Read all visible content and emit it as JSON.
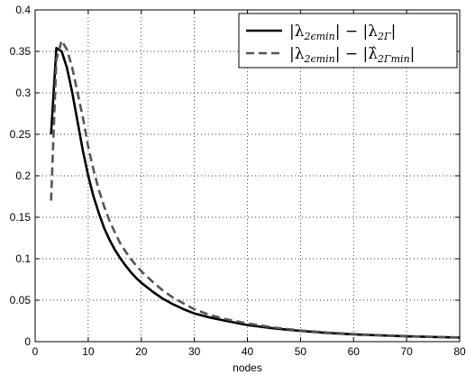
{
  "chart_data": {
    "type": "line",
    "title": "",
    "xlabel": "nodes",
    "ylabel": "",
    "xlim": [
      0,
      80
    ],
    "ylim": [
      0,
      0.4
    ],
    "xticks": [
      0,
      10,
      20,
      30,
      40,
      50,
      60,
      70,
      80
    ],
    "yticks": [
      0,
      0.05,
      0.1,
      0.15,
      0.2,
      0.25,
      0.3,
      0.35,
      0.4
    ],
    "xtick_labels": [
      "0",
      "10",
      "20",
      "30",
      "40",
      "50",
      "60",
      "70",
      "80"
    ],
    "ytick_labels": [
      "0",
      "0.05",
      "0.1",
      "0.15",
      "0.2",
      "0.25",
      "0.3",
      "0.35",
      "0.4"
    ],
    "grid": true,
    "legend_position": "top-right",
    "series": [
      {
        "name": "|λ2ϵmin| − |λ2Γ|",
        "style": "solid",
        "color": "#000000",
        "x": [
          3,
          4,
          5,
          6,
          7,
          8,
          9,
          10,
          11,
          12,
          13,
          14,
          15,
          16,
          17,
          18,
          19,
          20,
          22,
          24,
          26,
          28,
          30,
          33,
          36,
          40,
          45,
          50,
          55,
          60,
          65,
          70,
          75,
          80
        ],
        "y": [
          0.25,
          0.354,
          0.35,
          0.33,
          0.3,
          0.265,
          0.23,
          0.2,
          0.175,
          0.155,
          0.137,
          0.123,
          0.111,
          0.101,
          0.092,
          0.084,
          0.077,
          0.071,
          0.061,
          0.052,
          0.045,
          0.039,
          0.034,
          0.029,
          0.025,
          0.02,
          0.016,
          0.013,
          0.0105,
          0.0088,
          0.0075,
          0.0064,
          0.0056,
          0.0049
        ]
      },
      {
        "name": "|λ2ϵmin| − |λ̂2Γmin|",
        "style": "dashed",
        "color": "#555555",
        "x": [
          3,
          4,
          5,
          6,
          7,
          8,
          9,
          10,
          11,
          12,
          13,
          14,
          15,
          16,
          17,
          18,
          19,
          20,
          22,
          24,
          26,
          28,
          30,
          33,
          36,
          40,
          45,
          50,
          55,
          60,
          65,
          70,
          75,
          80
        ],
        "y": [
          0.17,
          0.34,
          0.363,
          0.352,
          0.33,
          0.3,
          0.27,
          0.235,
          0.207,
          0.183,
          0.163,
          0.146,
          0.132,
          0.119,
          0.109,
          0.1,
          0.092,
          0.085,
          0.073,
          0.062,
          0.053,
          0.046,
          0.039,
          0.032,
          0.027,
          0.022,
          0.017,
          0.0135,
          0.011,
          0.0092,
          0.0078,
          0.0067,
          0.0058,
          0.0051
        ]
      }
    ],
    "legend": [
      {
        "main": "|λ",
        "sub": "2ϵmin",
        "mid": "| − |λ",
        "sub2": "2Γ",
        "end": "|"
      },
      {
        "main": "|λ",
        "sub": "2ϵmin",
        "mid": "| − |λ̂",
        "sub2": "2Γmin",
        "end": "|"
      }
    ]
  }
}
